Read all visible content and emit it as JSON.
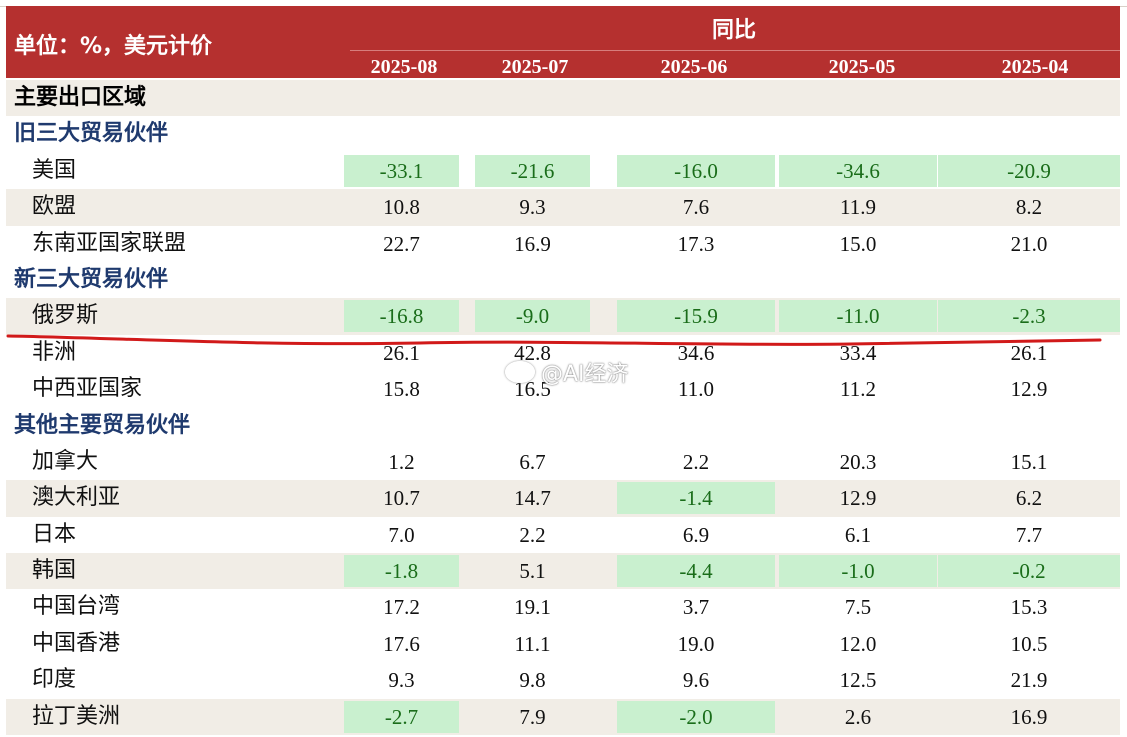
{
  "header": {
    "unit_label": "单位：%，美元计价",
    "group_label": "同比",
    "columns": [
      "2025-08",
      "2025-07",
      "2025-06",
      "2025-05",
      "2025-04"
    ]
  },
  "rows": [
    {
      "label": "主要出口区域",
      "kind": "main",
      "values": []
    },
    {
      "label": "旧三大贸易伙伴",
      "kind": "section",
      "values": []
    },
    {
      "label": "美国",
      "kind": "item",
      "values": [
        "-33.1",
        "-21.6",
        "-16.0",
        "-34.6",
        "-20.9"
      ]
    },
    {
      "label": "欧盟",
      "kind": "item",
      "values": [
        "10.8",
        "9.3",
        "7.6",
        "11.9",
        "8.2"
      ]
    },
    {
      "label": "东南亚国家联盟",
      "kind": "item",
      "values": [
        "22.7",
        "16.9",
        "17.3",
        "15.0",
        "21.0"
      ]
    },
    {
      "label": "新三大贸易伙伴",
      "kind": "section",
      "values": []
    },
    {
      "label": "俄罗斯",
      "kind": "item",
      "values": [
        "-16.8",
        "-9.0",
        "-15.9",
        "-11.0",
        "-2.3"
      ]
    },
    {
      "label": "非洲",
      "kind": "item",
      "values": [
        "26.1",
        "42.8",
        "34.6",
        "33.4",
        "26.1"
      ]
    },
    {
      "label": "中西亚国家",
      "kind": "item",
      "values": [
        "15.8",
        "16.5",
        "11.0",
        "11.2",
        "12.9"
      ]
    },
    {
      "label": "其他主要贸易伙伴",
      "kind": "section",
      "values": []
    },
    {
      "label": "加拿大",
      "kind": "item",
      "values": [
        "1.2",
        "6.7",
        "2.2",
        "20.3",
        "15.1"
      ]
    },
    {
      "label": "澳大利亚",
      "kind": "item",
      "values": [
        "10.7",
        "14.7",
        "-1.4",
        "12.9",
        "6.2"
      ]
    },
    {
      "label": "日本",
      "kind": "item",
      "values": [
        "7.0",
        "2.2",
        "6.9",
        "6.1",
        "7.7"
      ]
    },
    {
      "label": "韩国",
      "kind": "item",
      "values": [
        "-1.8",
        "5.1",
        "-4.4",
        "-1.0",
        "-0.2"
      ]
    },
    {
      "label": "中国台湾",
      "kind": "item",
      "values": [
        "17.2",
        "19.1",
        "3.7",
        "7.5",
        "15.3"
      ]
    },
    {
      "label": "中国香港",
      "kind": "item",
      "values": [
        "17.6",
        "11.1",
        "19.0",
        "12.0",
        "10.5"
      ]
    },
    {
      "label": "印度",
      "kind": "item",
      "values": [
        "9.3",
        "9.8",
        "9.6",
        "12.5",
        "21.9"
      ]
    },
    {
      "label": "拉丁美洲",
      "kind": "item",
      "values": [
        "-2.7",
        "7.9",
        "-2.0",
        "2.6",
        "16.9"
      ]
    }
  ],
  "watermark": "@AI经济",
  "colors": {
    "header_bg": "#b5302f",
    "negative_bg": "#c9f0cf",
    "negative_text": "#1a6d1a",
    "section_text": "#1f3a6e",
    "shade_bg": "#f1ede6",
    "annotation_line": "#d11a1a"
  }
}
